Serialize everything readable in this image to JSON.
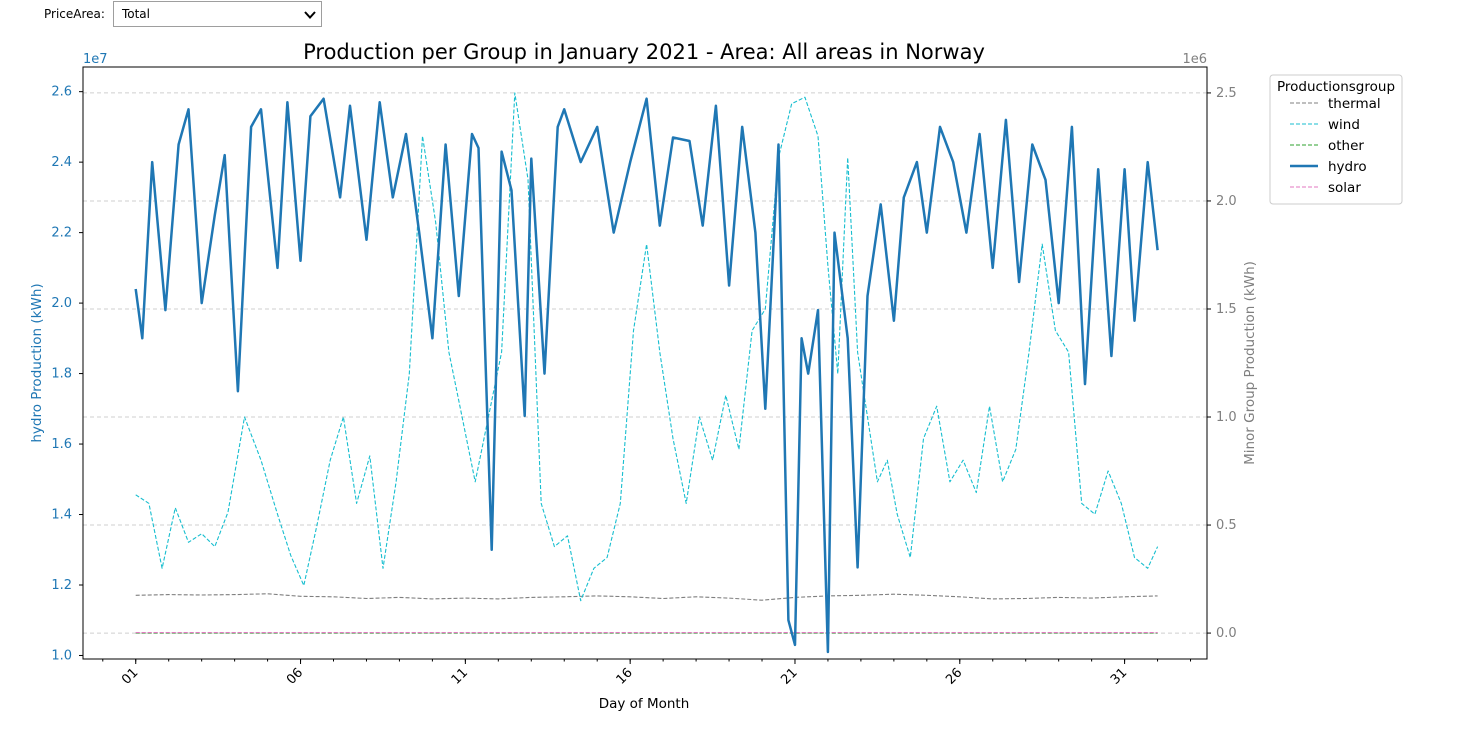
{
  "widget": {
    "label": "PriceArea:",
    "selected": "Total"
  },
  "chart_data": {
    "type": "line",
    "title": "Production per Group in January 2021 - Area: All areas in Norway",
    "xlabel": "Day of Month",
    "ylabel_left": "hydro Production (kWh)",
    "ylabel_right": "Minor Group Production (kWh)",
    "left_offset_text": "1e7",
    "right_offset_text": "1e6",
    "x_tick_labels": [
      "01",
      "06",
      "11",
      "16",
      "21",
      "26",
      "31"
    ],
    "x_tick_days": [
      1,
      6,
      11,
      16,
      21,
      26,
      31
    ],
    "xlim": [
      -0.6,
      33.5
    ],
    "ylim_left": [
      9900000.0,
      26700000.0
    ],
    "ylim_right": [
      -120000.0,
      2620000.0
    ],
    "left_ticks": [
      1.0,
      1.2,
      1.4,
      1.6,
      1.8,
      2.0,
      2.2,
      2.4,
      2.6
    ],
    "right_ticks": [
      0.0,
      0.5,
      1.0,
      1.5,
      2.0,
      2.5
    ],
    "grid": "dashed, right axis",
    "legend": {
      "title": "Productionsgroup",
      "placement": "outside right-top"
    },
    "series": [
      {
        "name": "thermal",
        "axis": "right",
        "color": "#7f7f7f",
        "style": "dashed",
        "x": [
          1,
          2,
          3,
          4,
          5,
          6,
          7,
          8,
          9,
          10,
          11,
          12,
          13,
          14,
          15,
          16,
          17,
          18,
          19,
          20,
          21,
          22,
          23,
          24,
          25,
          26,
          27,
          28,
          29,
          30,
          31,
          32
        ],
        "values": [
          175000,
          178000,
          176000,
          178000,
          182000,
          170000,
          168000,
          160000,
          165000,
          158000,
          162000,
          158000,
          165000,
          168000,
          172000,
          168000,
          160000,
          168000,
          162000,
          152000,
          165000,
          172000,
          175000,
          180000,
          175000,
          168000,
          158000,
          160000,
          165000,
          162000,
          168000,
          172000
        ]
      },
      {
        "name": "wind",
        "axis": "right",
        "color": "#17becf",
        "style": "dashed",
        "x": [
          1,
          1.4,
          1.8,
          2.2,
          2.6,
          3.0,
          3.4,
          3.8,
          4.3,
          4.8,
          5.3,
          5.7,
          6.1,
          6.5,
          6.9,
          7.3,
          7.7,
          8.1,
          8.5,
          8.9,
          9.3,
          9.7,
          10.1,
          10.5,
          10.9,
          11.3,
          11.7,
          12.1,
          12.5,
          12.9,
          13.3,
          13.7,
          14.1,
          14.5,
          14.9,
          15.3,
          15.7,
          16.1,
          16.5,
          16.9,
          17.3,
          17.7,
          18.1,
          18.5,
          18.9,
          19.3,
          19.7,
          20.1,
          20.5,
          20.9,
          21.3,
          21.7,
          22.0,
          22.3,
          22.6,
          22.9,
          23.2,
          23.5,
          23.8,
          24.1,
          24.5,
          24.9,
          25.3,
          25.7,
          26.1,
          26.5,
          26.9,
          27.3,
          27.7,
          28.1,
          28.5,
          28.9,
          29.3,
          29.7,
          30.1,
          30.5,
          30.9,
          31.3,
          31.7,
          32.0
        ],
        "values": [
          640000,
          600000,
          300000,
          580000,
          420000,
          460000,
          400000,
          560000,
          1000000,
          800000,
          550000,
          360000,
          220000,
          500000,
          800000,
          1000000,
          600000,
          820000,
          300000,
          700000,
          1200000,
          2300000,
          1900000,
          1300000,
          1000000,
          700000,
          1000000,
          1300000,
          2500000,
          2100000,
          600000,
          400000,
          450000,
          150000,
          300000,
          350000,
          600000,
          1400000,
          1800000,
          1300000,
          900000,
          600000,
          1000000,
          800000,
          1100000,
          850000,
          1400000,
          1500000,
          2200000,
          2450000,
          2480000,
          2300000,
          1700000,
          1200000,
          2200000,
          1300000,
          1000000,
          700000,
          800000,
          550000,
          350000,
          900000,
          1050000,
          700000,
          800000,
          650000,
          1050000,
          700000,
          850000,
          1300000,
          1800000,
          1400000,
          1300000,
          600000,
          550000,
          750000,
          600000,
          350000,
          300000,
          400000
        ]
      },
      {
        "name": "other",
        "axis": "right",
        "color": "#2ca02c",
        "style": "dashed",
        "x": [
          1,
          32
        ],
        "values": [
          0,
          0
        ]
      },
      {
        "name": "hydro",
        "axis": "left",
        "color": "#1f77b4",
        "style": "solid",
        "x": [
          1,
          1.2,
          1.5,
          1.9,
          2.3,
          2.6,
          3.0,
          3.4,
          3.7,
          4.1,
          4.5,
          4.8,
          5.3,
          5.6,
          6.0,
          6.3,
          6.7,
          7.2,
          7.5,
          8.0,
          8.4,
          8.8,
          9.2,
          9.6,
          10.0,
          10.4,
          10.8,
          11.2,
          11.4,
          11.8,
          12.1,
          12.4,
          12.8,
          13.0,
          13.4,
          13.8,
          14.0,
          14.5,
          15.0,
          15.5,
          16.0,
          16.5,
          16.9,
          17.3,
          17.8,
          18.2,
          18.6,
          19.0,
          19.4,
          19.8,
          20.1,
          20.5,
          20.8,
          21.0,
          21.2,
          21.4,
          21.7,
          22.0,
          22.2,
          22.6,
          22.9,
          23.2,
          23.6,
          24.0,
          24.3,
          24.7,
          25.0,
          25.4,
          25.8,
          26.2,
          26.6,
          27.0,
          27.4,
          27.8,
          28.2,
          28.6,
          29.0,
          29.4,
          29.8,
          30.2,
          30.6,
          31.0,
          31.3,
          31.7,
          32.0
        ],
        "values": [
          20400000,
          19000000,
          24000000,
          19800000,
          24500000,
          25500000,
          20000000,
          22500000,
          24200000,
          17500000,
          25000000,
          25500000,
          21000000,
          25700000,
          21200000,
          25300000,
          25800000,
          23000000,
          25600000,
          21800000,
          25700000,
          23000000,
          24800000,
          22000000,
          19000000,
          24500000,
          20200000,
          24800000,
          24400000,
          13000000,
          24300000,
          23200000,
          16800000,
          24100000,
          18000000,
          25000000,
          25500000,
          24000000,
          25000000,
          22000000,
          24000000,
          25800000,
          22200000,
          24700000,
          24600000,
          22200000,
          25600000,
          20500000,
          25000000,
          22000000,
          17000000,
          24500000,
          11000000,
          10300000,
          19000000,
          18000000,
          19800000,
          10100000,
          22000000,
          19000000,
          12500000,
          20200000,
          22800000,
          19500000,
          23000000,
          24000000,
          22000000,
          25000000,
          24000000,
          22000000,
          24800000,
          21000000,
          25200000,
          20600000,
          24500000,
          23500000,
          20000000,
          25000000,
          17700000,
          23800000,
          18500000,
          23800000,
          19500000,
          24000000,
          21500000
        ]
      },
      {
        "name": "solar",
        "axis": "right",
        "color": "#e377c2",
        "style": "dashed",
        "x": [
          1,
          32
        ],
        "values": [
          2000,
          2000
        ]
      }
    ]
  }
}
